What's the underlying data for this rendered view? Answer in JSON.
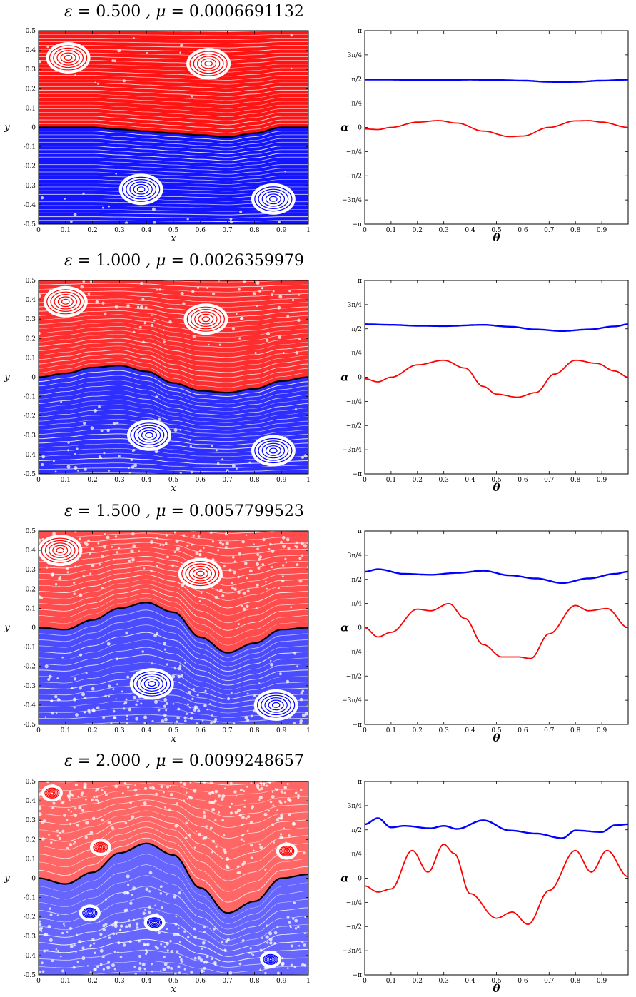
{
  "colors": {
    "top_region": "#ff0000",
    "bottom_region": "#0000ff",
    "separatrix": "#000000",
    "axes": "#000000"
  },
  "poincare_axes": {
    "xlabel": "x",
    "ylabel": "y",
    "xticks": [
      "0",
      "0.1",
      "0.2",
      "0.3",
      "0.4",
      "0.5",
      "0.6",
      "0.7",
      "0.8",
      "0.9",
      "1"
    ],
    "yticks": [
      "0.5",
      "0.4",
      "0.3",
      "0.2",
      "0.1",
      "0",
      "-0.1",
      "-0.2",
      "-0.3",
      "-0.4",
      "-0.5"
    ],
    "xlim": [
      0,
      1
    ],
    "ylim": [
      -0.5,
      0.5
    ]
  },
  "angle_axes": {
    "xlabel": "θ",
    "ylabel": "α",
    "xticks": [
      "0",
      "0.1",
      "0.2",
      "0.3",
      "0.4",
      "0.5",
      "0.6",
      "0.7",
      "0.8",
      "0.9"
    ],
    "yticks": [
      "π",
      "3π/4",
      "π/2",
      "π/4",
      "0",
      "−π/4",
      "−π/2",
      "−3π/4",
      "−π"
    ],
    "xlim": [
      0,
      1
    ]
  },
  "panels": [
    {
      "eps": "0.500",
      "mu": "0.0006691132"
    },
    {
      "eps": "1.000",
      "mu": "0.0026359979"
    },
    {
      "eps": "1.500",
      "mu": "0.0057799523"
    },
    {
      "eps": "2.000",
      "mu": "0.0099248657"
    }
  ],
  "chart_data": [
    {
      "type": "scatter",
      "title": "ε = 0.500 , μ = 0.0006691132",
      "xlabel": "x",
      "ylabel": "y",
      "xlim": [
        0,
        1
      ],
      "ylim": [
        -0.5,
        0.5
      ],
      "separatrix": {
        "x": [
          0,
          0.1,
          0.2,
          0.3,
          0.4,
          0.5,
          0.6,
          0.7,
          0.8,
          0.9,
          1
        ],
        "y": [
          0.0,
          0.0,
          0.0,
          -0.01,
          -0.02,
          -0.03,
          -0.04,
          -0.05,
          -0.03,
          0.0,
          0.0
        ]
      },
      "islands": [
        {
          "cx": 0.11,
          "cy": 0.36,
          "color": "red"
        },
        {
          "cx": 0.63,
          "cy": 0.33,
          "color": "red"
        },
        {
          "cx": 0.38,
          "cy": -0.32,
          "color": "blue"
        },
        {
          "cx": 0.87,
          "cy": -0.37,
          "color": "blue"
        }
      ]
    },
    {
      "type": "line",
      "xlabel": "θ",
      "ylabel": "α",
      "xlim": [
        0,
        1
      ],
      "ylim": [
        -3.1416,
        3.1416
      ],
      "series": [
        {
          "color": "blue",
          "x": [
            0,
            0.1,
            0.2,
            0.3,
            0.4,
            0.5,
            0.6,
            0.7,
            0.75,
            0.8,
            0.9,
            1.0
          ],
          "y": [
            1.55,
            1.55,
            1.54,
            1.54,
            1.55,
            1.54,
            1.52,
            1.48,
            1.47,
            1.48,
            1.52,
            1.55
          ]
        },
        {
          "color": "red",
          "x": [
            0,
            0.05,
            0.1,
            0.2,
            0.28,
            0.35,
            0.45,
            0.55,
            0.6,
            0.7,
            0.8,
            0.85,
            0.9,
            1.0
          ],
          "y": [
            -0.05,
            -0.07,
            0.0,
            0.17,
            0.22,
            0.14,
            -0.12,
            -0.3,
            -0.28,
            0.0,
            0.21,
            0.22,
            0.17,
            0.0
          ]
        }
      ]
    },
    {
      "type": "scatter",
      "title": "ε = 1.000 , μ = 0.0026359979",
      "xlabel": "x",
      "ylabel": "y",
      "xlim": [
        0,
        1
      ],
      "ylim": [
        -0.5,
        0.5
      ],
      "separatrix": {
        "x": [
          0,
          0.1,
          0.2,
          0.3,
          0.4,
          0.5,
          0.6,
          0.7,
          0.8,
          0.9,
          1
        ],
        "y": [
          0.0,
          0.02,
          0.05,
          0.06,
          0.03,
          -0.03,
          -0.07,
          -0.08,
          -0.06,
          -0.02,
          0.0
        ]
      },
      "islands": [
        {
          "cx": 0.1,
          "cy": 0.39,
          "color": "red"
        },
        {
          "cx": 0.62,
          "cy": 0.3,
          "color": "red"
        },
        {
          "cx": 0.41,
          "cy": -0.3,
          "color": "blue"
        },
        {
          "cx": 0.87,
          "cy": -0.38,
          "color": "blue"
        }
      ]
    },
    {
      "type": "line",
      "xlabel": "θ",
      "ylabel": "α",
      "xlim": [
        0,
        1
      ],
      "ylim": [
        -3.1416,
        3.1416
      ],
      "series": [
        {
          "color": "blue",
          "x": [
            0,
            0.1,
            0.2,
            0.3,
            0.45,
            0.55,
            0.65,
            0.75,
            0.85,
            0.95,
            1.0
          ],
          "y": [
            1.72,
            1.7,
            1.67,
            1.66,
            1.7,
            1.64,
            1.55,
            1.5,
            1.55,
            1.65,
            1.72
          ]
        },
        {
          "color": "red",
          "x": [
            0,
            0.05,
            0.1,
            0.2,
            0.3,
            0.38,
            0.45,
            0.5,
            0.58,
            0.65,
            0.72,
            0.8,
            0.88,
            0.95,
            1.0
          ],
          "y": [
            -0.05,
            -0.15,
            0.0,
            0.4,
            0.55,
            0.3,
            -0.3,
            -0.55,
            -0.65,
            -0.5,
            0.1,
            0.55,
            0.45,
            0.2,
            0.0
          ]
        }
      ]
    },
    {
      "type": "scatter",
      "title": "ε = 1.500 , μ = 0.0057799523",
      "xlabel": "x",
      "ylabel": "y",
      "xlim": [
        0,
        1
      ],
      "ylim": [
        -0.5,
        0.5
      ],
      "separatrix": {
        "x": [
          0,
          0.1,
          0.2,
          0.3,
          0.4,
          0.5,
          0.6,
          0.7,
          0.8,
          0.9,
          1
        ],
        "y": [
          0.0,
          -0.01,
          0.04,
          0.1,
          0.13,
          0.08,
          -0.05,
          -0.13,
          -0.08,
          -0.01,
          0.0
        ]
      },
      "islands": [
        {
          "cx": 0.08,
          "cy": 0.4,
          "color": "red"
        },
        {
          "cx": 0.6,
          "cy": 0.28,
          "color": "red"
        },
        {
          "cx": 0.42,
          "cy": -0.29,
          "color": "blue"
        },
        {
          "cx": 0.88,
          "cy": -0.4,
          "color": "blue"
        }
      ]
    },
    {
      "type": "line",
      "xlabel": "θ",
      "ylabel": "α",
      "xlim": [
        0,
        1
      ],
      "ylim": [
        -3.1416,
        3.1416
      ],
      "series": [
        {
          "color": "blue",
          "x": [
            0,
            0.05,
            0.15,
            0.25,
            0.35,
            0.45,
            0.55,
            0.65,
            0.75,
            0.85,
            0.95,
            1.0
          ],
          "y": [
            1.82,
            1.9,
            1.75,
            1.72,
            1.78,
            1.85,
            1.7,
            1.6,
            1.45,
            1.6,
            1.75,
            1.82
          ]
        },
        {
          "color": "red",
          "x": [
            0,
            0.05,
            0.1,
            0.2,
            0.25,
            0.32,
            0.38,
            0.45,
            0.52,
            0.58,
            0.63,
            0.7,
            0.8,
            0.85,
            0.92,
            1.0
          ],
          "y": [
            0.0,
            -0.3,
            -0.15,
            0.6,
            0.55,
            0.78,
            0.3,
            -0.55,
            -0.95,
            -0.95,
            -1.0,
            -0.2,
            0.72,
            0.55,
            0.62,
            0.0
          ]
        }
      ]
    },
    {
      "type": "scatter",
      "title": "ε = 2.000 , μ = 0.0099248657",
      "xlabel": "x",
      "ylabel": "y",
      "xlim": [
        0,
        1
      ],
      "ylim": [
        -0.5,
        0.5
      ],
      "separatrix": {
        "x": [
          0,
          0.1,
          0.2,
          0.3,
          0.4,
          0.5,
          0.6,
          0.7,
          0.8,
          0.9,
          1
        ],
        "y": [
          0.0,
          -0.03,
          0.03,
          0.13,
          0.18,
          0.12,
          -0.05,
          -0.18,
          -0.12,
          0.0,
          0.02
        ]
      },
      "islands": [
        {
          "cx": 0.05,
          "cy": 0.44,
          "color": "red"
        },
        {
          "cx": 0.23,
          "cy": 0.16,
          "color": "red"
        },
        {
          "cx": 0.92,
          "cy": 0.14,
          "color": "red"
        },
        {
          "cx": 0.19,
          "cy": -0.18,
          "color": "blue"
        },
        {
          "cx": 0.43,
          "cy": -0.23,
          "color": "blue"
        },
        {
          "cx": 0.86,
          "cy": -0.42,
          "color": "blue"
        }
      ]
    },
    {
      "type": "line",
      "xlabel": "θ",
      "ylabel": "α",
      "xlim": [
        0,
        1
      ],
      "ylim": [
        -3.1416,
        3.1416
      ],
      "series": [
        {
          "color": "blue",
          "x": [
            0,
            0.05,
            0.1,
            0.15,
            0.25,
            0.3,
            0.35,
            0.45,
            0.55,
            0.65,
            0.75,
            0.8,
            0.9,
            0.95,
            1.0
          ],
          "y": [
            1.75,
            1.95,
            1.65,
            1.7,
            1.62,
            1.7,
            1.6,
            1.88,
            1.55,
            1.45,
            1.3,
            1.55,
            1.5,
            1.72,
            1.75
          ]
        },
        {
          "color": "red",
          "x": [
            0,
            0.05,
            0.1,
            0.18,
            0.24,
            0.3,
            0.34,
            0.4,
            0.5,
            0.56,
            0.62,
            0.7,
            0.8,
            0.86,
            0.92,
            1.0
          ],
          "y": [
            -0.25,
            -0.45,
            -0.35,
            0.9,
            0.2,
            1.1,
            0.8,
            -0.5,
            -1.3,
            -1.1,
            -1.5,
            -0.4,
            0.9,
            0.2,
            0.9,
            0.05
          ]
        }
      ]
    }
  ]
}
